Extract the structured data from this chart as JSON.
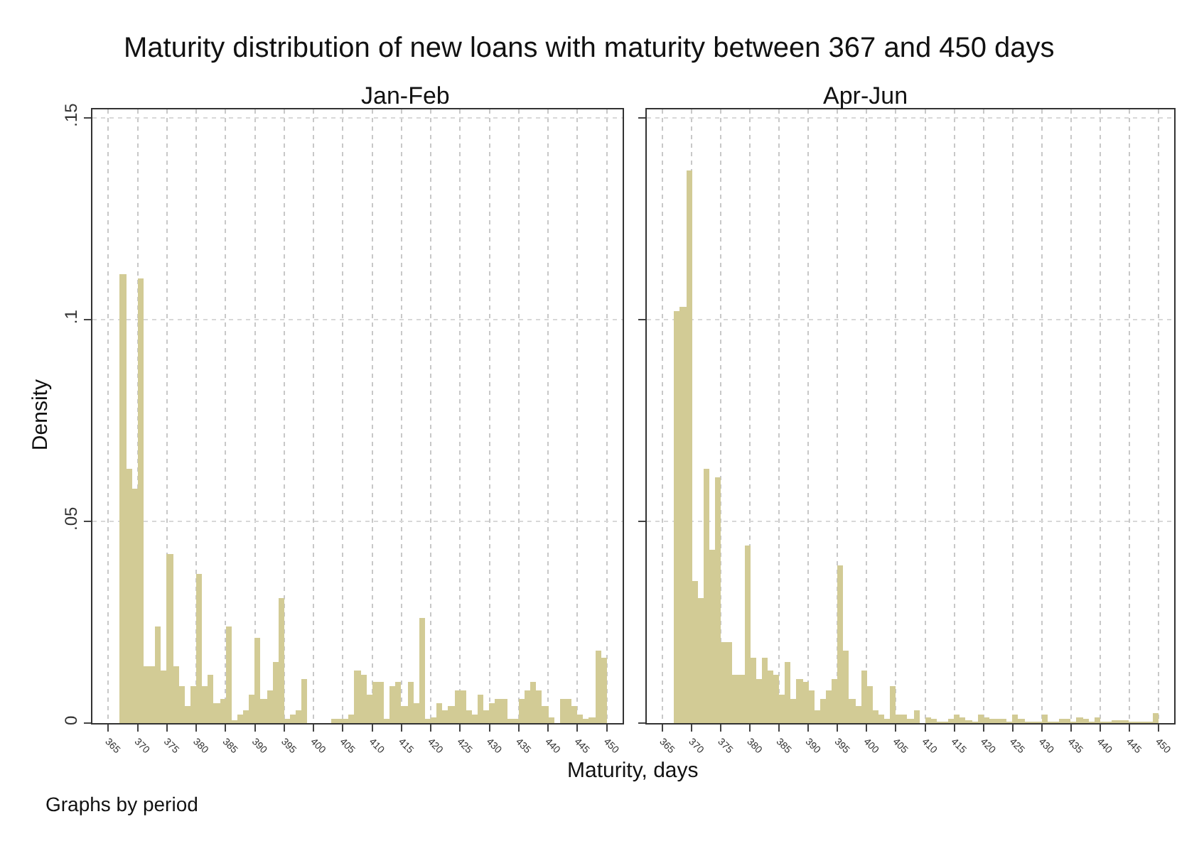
{
  "chart_data": [
    {
      "type": "histogram",
      "title": "Maturity distribution of new loans with maturity between 367 and 450 days",
      "subtitle": "Jan-Feb",
      "xlabel": "Maturity, days",
      "ylabel": "Density",
      "annotations": [
        "Graphs by period"
      ],
      "bins": [
        367,
        368,
        369,
        370,
        371,
        372,
        373,
        374,
        375,
        376,
        377,
        378,
        379,
        380,
        381,
        382,
        383,
        384,
        385,
        386,
        387,
        388,
        389,
        390,
        391,
        392,
        393,
        394,
        395,
        396,
        397,
        398,
        399,
        400,
        401,
        402,
        403,
        404,
        405,
        406,
        407,
        408,
        409,
        410,
        411,
        412,
        413,
        414,
        415,
        416,
        417,
        418,
        419,
        420,
        421,
        422,
        423,
        424,
        425,
        426,
        427,
        428,
        429,
        430,
        431,
        432,
        433,
        434,
        435,
        436,
        437,
        438,
        439,
        440,
        441,
        442,
        443,
        444,
        445,
        446,
        447,
        448,
        449,
        450
      ],
      "values": [
        0.111,
        0.063,
        0.058,
        0.11,
        0.014,
        0.014,
        0.024,
        0.013,
        0.042,
        0.014,
        0.009,
        0.004,
        0.009,
        0.037,
        0.009,
        0.012,
        0.005,
        0.006,
        0.024,
        0.0003,
        0.002,
        0.003,
        0.007,
        0.021,
        0.006,
        0.008,
        0.015,
        0.031,
        0.001,
        0.002,
        0.003,
        0.011,
        0,
        0,
        0,
        0,
        0.001,
        0.001,
        0.001,
        0.002,
        0.013,
        0.012,
        0.007,
        0.01,
        0.01,
        0.001,
        0.009,
        0.01,
        0.004,
        0.01,
        0.005,
        0.026,
        0.001,
        0.0015,
        0.005,
        0.003,
        0.004,
        0.008,
        0.008,
        0.003,
        0.002,
        0.007,
        0.003,
        0.005,
        0.006,
        0.006,
        0.001,
        0.001,
        0.006,
        0.008,
        0.01,
        0.008,
        0.004,
        0.0015,
        0,
        0.006,
        0.006,
        0.004,
        0.002,
        0.001,
        0.0015,
        0.018,
        0.016
      ],
      "color": "#d2cb95",
      "xlim": [
        362.3,
        452.7
      ],
      "ylim": [
        0,
        0.152
      ],
      "xticks": [
        365,
        370,
        375,
        380,
        385,
        390,
        395,
        400,
        405,
        410,
        415,
        420,
        425,
        430,
        435,
        440,
        445,
        450
      ],
      "yticks": [
        0,
        {
          "value": 0.05,
          "label": ".05"
        },
        {
          "value": 0.1,
          "label": ".1"
        },
        {
          "value": 0.15,
          "label": ".15"
        }
      ],
      "grid": true
    },
    {
      "type": "histogram",
      "subtitle": "Apr-Jun",
      "bins": [
        367,
        368,
        369,
        370,
        371,
        372,
        373,
        374,
        375,
        376,
        377,
        378,
        379,
        380,
        381,
        382,
        383,
        384,
        385,
        386,
        387,
        388,
        389,
        390,
        391,
        392,
        393,
        394,
        395,
        396,
        397,
        398,
        399,
        400,
        401,
        402,
        403,
        404,
        405,
        406,
        407,
        408,
        409,
        410,
        411,
        412,
        413,
        414,
        415,
        416,
        417,
        418,
        419,
        420,
        421,
        422,
        423,
        424,
        425,
        426,
        427,
        428,
        429,
        430,
        431,
        432,
        433,
        434,
        435,
        436,
        437,
        438,
        439,
        440,
        441,
        442,
        443,
        444,
        445,
        446,
        447,
        448,
        449,
        450
      ],
      "values": [
        0.102,
        0.103,
        0.137,
        0.035,
        0.031,
        0.063,
        0.043,
        0.061,
        0.02,
        0.02,
        0.012,
        0.012,
        0.044,
        0.016,
        0.011,
        0.016,
        0.013,
        0.012,
        0.007,
        0.015,
        0.006,
        0.011,
        0.01,
        0.008,
        0.003,
        0.006,
        0.008,
        0.011,
        0.039,
        0.018,
        0.006,
        0.004,
        0.013,
        0.009,
        0.003,
        0.002,
        0.001,
        0.009,
        0.002,
        0.002,
        0.001,
        0.003,
        0,
        0.0014,
        0.001,
        0.0002,
        0.0002,
        0.001,
        0.002,
        0.0014,
        0.0008,
        0.0002,
        0.002,
        0.0014,
        0.001,
        0.001,
        0.001,
        0.0002,
        0.002,
        0.001,
        0.0002,
        0.0002,
        0.0002,
        0.002,
        0.0002,
        0.0002,
        0.001,
        0.001,
        0.0002,
        0.0014,
        0.001,
        0.0002,
        0.0014,
        0.0002,
        0.0002,
        0.0004,
        0.0008,
        0.0004,
        0.0002,
        0.0002,
        0.0002,
        0.0002,
        0.0025
      ],
      "color": "#d2cb95",
      "xlim": [
        362.3,
        452.7
      ],
      "ylim": [
        0,
        0.152
      ],
      "xticks": [
        365,
        370,
        375,
        380,
        385,
        390,
        395,
        400,
        405,
        410,
        415,
        420,
        425,
        430,
        435,
        440,
        445,
        450
      ],
      "yticks": [
        {
          "value": 0,
          "label": null
        },
        {
          "value": 0.05,
          "label": null
        },
        {
          "value": 0.1,
          "label": null
        },
        {
          "value": 0.15,
          "label": null
        }
      ],
      "grid": true,
      "tick_labels": "x"
    }
  ]
}
